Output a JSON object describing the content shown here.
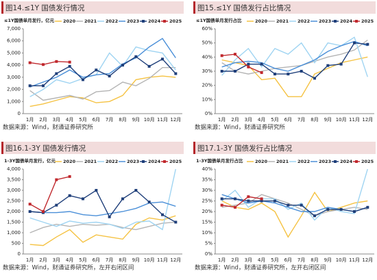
{
  "chart_data": [
    {
      "type": "line",
      "title": "图14.≤1Y 国债发行情况",
      "y_label": "≤1Y国债单月发行，亿元",
      "source": "数据来源：Wind，财通证券研究所",
      "categories": [
        "1月",
        "2月",
        "3月",
        "4月",
        "5月",
        "6月",
        "7月",
        "8月",
        "9月",
        "10月",
        "11月",
        "12月"
      ],
      "ylim": [
        0,
        7000
      ],
      "yticks": [
        0,
        {
          "value": 1000,
          "label": "1,000"
        },
        {
          "value": 2000,
          "label": "2,000"
        },
        {
          "value": 3000,
          "label": "3,000"
        },
        {
          "value": 4000,
          "label": "4,000"
        },
        {
          "value": 5000,
          "label": "5,000"
        },
        {
          "value": 6000,
          "label": "6,000"
        },
        {
          "value": 7000,
          "label": "7,000"
        }
      ],
      "series": [
        {
          "name": "2020",
          "color": "#f5c242",
          "values": [
            600,
            800,
            1100,
            1400,
            1300,
            900,
            1000,
            1500,
            2800,
            3000,
            3100,
            3000
          ]
        },
        {
          "name": "2021",
          "color": "#b4b4b4",
          "values": [
            1900,
            1100,
            1300,
            1500,
            1200,
            1800,
            1900,
            2600,
            2300,
            2900,
            3800,
            3800
          ]
        },
        {
          "name": "2022",
          "color": "#9fd4f2",
          "values": [
            1400,
            2000,
            2800,
            2500,
            2900,
            3200,
            5000,
            3900,
            5500,
            5200,
            5000,
            3600
          ]
        },
        {
          "name": "2023",
          "color": "#4a8fd8",
          "values": [
            2200,
            2600,
            3000,
            3600,
            3000,
            3200,
            3300,
            4100,
            4600,
            5500,
            6200,
            4600
          ]
        },
        {
          "name": "2024",
          "color": "#1f3f7a",
          "marker": "square",
          "values": [
            2300,
            2300,
            3300,
            3900,
            2800,
            3600,
            3100,
            4000,
            4700,
            3900,
            4500,
            3300
          ]
        },
        {
          "name": "2025",
          "color": "#c0282d",
          "marker": "square",
          "values": [
            4200,
            4050,
            4300,
            4250,
            null,
            null,
            null,
            null,
            null,
            null,
            null,
            null
          ]
        }
      ]
    },
    {
      "type": "line",
      "title": "图15.≤1Y 国债发行占比情况",
      "y_label": "≤1Y国债单月发行占比",
      "source": "数据来源：Wind，财通证券研究所",
      "categories": [
        "1月",
        "2月",
        "3月",
        "4月",
        "5月",
        "6月",
        "7月",
        "8月",
        "9月",
        "10月",
        "11月",
        "12月"
      ],
      "ylim": [
        0,
        60
      ],
      "yticks": [
        {
          "value": 0,
          "label": "0%"
        },
        {
          "value": 10,
          "label": "10%"
        },
        {
          "value": 20,
          "label": "20%"
        },
        {
          "value": 30,
          "label": "30%"
        },
        {
          "value": 40,
          "label": "40%"
        },
        {
          "value": 50,
          "label": "50%"
        },
        {
          "value": 60,
          "label": "60%"
        }
      ],
      "series": [
        {
          "name": "2020",
          "color": "#f5c242",
          "values": [
            38,
            36,
            34,
            24,
            25,
            12,
            12,
            28,
            32,
            36,
            38,
            40
          ]
        },
        {
          "name": "2021",
          "color": "#b4b4b4",
          "values": [
            36,
            30,
            28,
            30,
            32,
            33,
            34,
            37,
            40,
            42,
            45,
            52
          ]
        },
        {
          "name": "2022",
          "color": "#9fd4f2",
          "values": [
            27,
            38,
            46,
            33,
            46,
            42,
            50,
            36,
            50,
            48,
            54,
            26
          ]
        },
        {
          "name": "2023",
          "color": "#4a8fd8",
          "values": [
            33,
            36,
            37,
            36,
            32,
            30,
            34,
            38,
            44,
            48,
            51,
            48
          ]
        },
        {
          "name": "2024",
          "color": "#1f3f7a",
          "marker": "square",
          "values": [
            30,
            30,
            35,
            35,
            28,
            28,
            30,
            25,
            34,
            35,
            50,
            49
          ]
        },
        {
          "name": "2025",
          "color": "#c0282d",
          "marker": "square",
          "values": [
            41,
            42,
            33,
            29,
            null,
            null,
            null,
            null,
            null,
            null,
            null,
            null
          ]
        }
      ]
    },
    {
      "type": "line",
      "title": "图16.1-3Y 国债发行情况",
      "y_label": "1-3Y国债单月发行，亿元",
      "source": "数据来源：Wind，财通证券研究所，左开右闭区间",
      "categories": [
        "1月",
        "2月",
        "3月",
        "4月",
        "5月",
        "6月",
        "7月",
        "8月",
        "9月",
        "10月",
        "11月",
        "12月"
      ],
      "ylim": [
        0,
        4000
      ],
      "yticks": [
        0,
        500,
        {
          "value": 1000,
          "label": "1,000"
        },
        {
          "value": 1500,
          "label": "1,500"
        },
        {
          "value": 2000,
          "label": "2,000"
        },
        {
          "value": 2500,
          "label": "2,500"
        },
        {
          "value": 3000,
          "label": "3,000"
        },
        {
          "value": 3500,
          "label": "3,500"
        },
        {
          "value": 4000,
          "label": "4,000"
        }
      ],
      "series": [
        {
          "name": "2020",
          "color": "#f5c242",
          "values": [
            450,
            400,
            800,
            1150,
            550,
            900,
            800,
            700,
            1400,
            1700,
            1600,
            1800
          ]
        },
        {
          "name": "2021",
          "color": "#b4b4b4",
          "values": [
            1000,
            1250,
            1400,
            1300,
            1400,
            1350,
            1400,
            1250,
            1150,
            1300,
            1450,
            1500
          ]
        },
        {
          "name": "2022",
          "color": "#9fd4f2",
          "values": [
            1700,
            1500,
            1300,
            1550,
            1450,
            1500,
            1400,
            1200,
            1500,
            1550,
            1150,
            4000
          ]
        },
        {
          "name": "2023",
          "color": "#4a8fd8",
          "values": [
            2000,
            1950,
            1950,
            2000,
            1850,
            1800,
            1900,
            2000,
            2150,
            2400,
            2450,
            2250
          ]
        },
        {
          "name": "2024",
          "color": "#1f3f7a",
          "marker": "square",
          "values": [
            2000,
            1950,
            2300,
            2750,
            2600,
            3000,
            1750,
            2600,
            3000,
            2450,
            1850,
            1500
          ]
        },
        {
          "name": "2025",
          "color": "#c0282d",
          "marker": "square",
          "values": [
            2350,
            2000,
            3500,
            3650,
            null,
            null,
            null,
            null,
            null,
            null,
            null,
            null
          ]
        }
      ]
    },
    {
      "type": "line",
      "title": "图17.1-3Y 国债发行占比情况",
      "y_label": "1-3Y国债单月发行占比",
      "source": "数据来源：Wind，财通证券研究所，左开右闭区间",
      "categories": [
        "1月",
        "2月",
        "3月",
        "4月",
        "5月",
        "6月",
        "7月",
        "8月",
        "9月",
        "10月",
        "11月",
        "12月"
      ],
      "ylim": [
        0,
        40
      ],
      "yticks": [
        {
          "value": 0,
          "label": "0%"
        },
        {
          "value": 5,
          "label": "5%"
        },
        {
          "value": 10,
          "label": "10%"
        },
        {
          "value": 15,
          "label": "15%"
        },
        {
          "value": 20,
          "label": "20%"
        },
        {
          "value": 25,
          "label": "25%"
        },
        {
          "value": 30,
          "label": "30%"
        },
        {
          "value": 35,
          "label": "35%"
        },
        {
          "value": 40,
          "label": "40%"
        }
      ],
      "series": [
        {
          "name": "2020",
          "color": "#f5c242",
          "values": [
            25,
            22,
            21,
            24,
            20,
            8,
            18,
            29,
            20,
            22,
            24,
            25
          ]
        },
        {
          "name": "2021",
          "color": "#b4b4b4",
          "values": [
            22,
            23,
            24,
            28,
            26,
            24,
            21,
            18,
            20,
            21,
            22,
            21
          ]
        },
        {
          "name": "2022",
          "color": "#9fd4f2",
          "values": [
            25,
            30,
            22,
            26,
            26,
            21,
            24,
            16,
            22,
            20,
            19,
            40
          ]
        },
        {
          "name": "2023",
          "color": "#4a8fd8",
          "values": [
            28,
            26,
            24,
            25,
            24,
            22,
            20,
            20,
            22,
            21,
            20,
            22
          ]
        },
        {
          "name": "2024",
          "color": "#1f3f7a",
          "marker": "square",
          "values": [
            26,
            26,
            25,
            25,
            25,
            23,
            23,
            18,
            21,
            21,
            20,
            22
          ]
        },
        {
          "name": "2025",
          "color": "#c0282d",
          "marker": "square",
          "values": [
            23,
            22,
            27,
            26,
            null,
            null,
            null,
            null,
            null,
            null,
            null,
            null
          ]
        }
      ]
    }
  ]
}
